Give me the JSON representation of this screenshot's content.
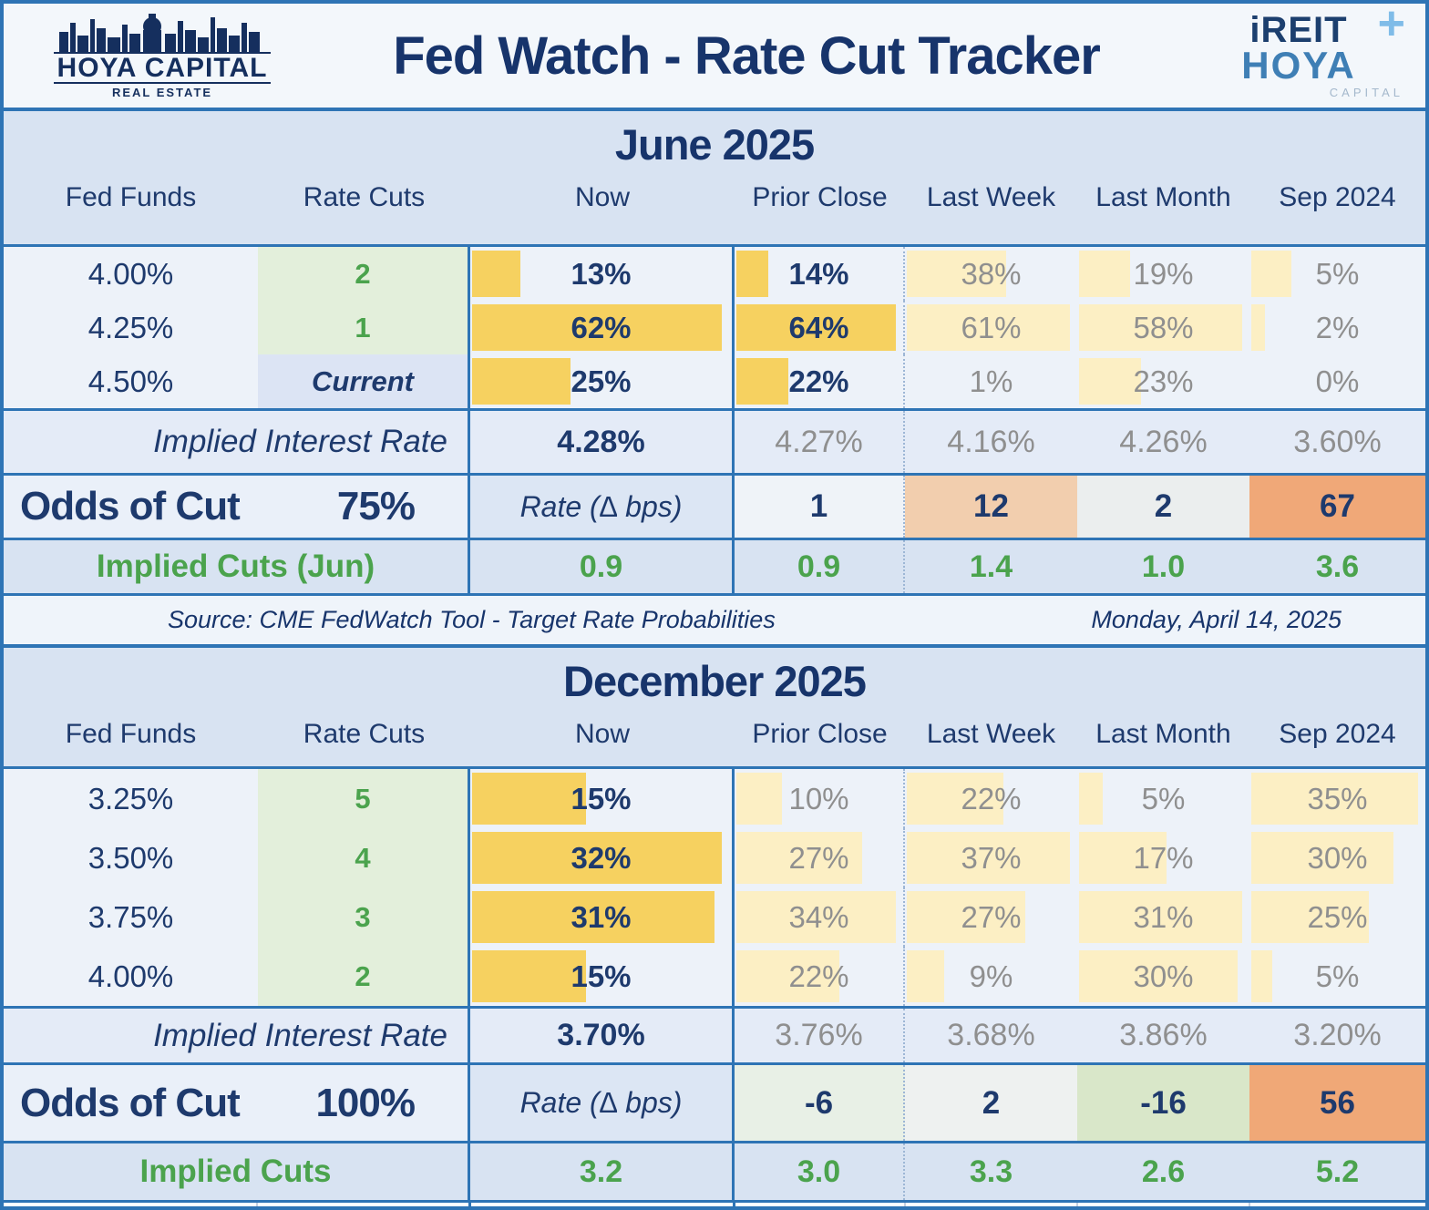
{
  "header": {
    "title": "Fed Watch - Rate Cut Tracker",
    "logo_left": {
      "name": "HOYA CAPITAL",
      "sub": "REAL ESTATE"
    },
    "logo_right": {
      "line1": "iREIT",
      "plus": "+",
      "line2": "HOYA",
      "line3": "CAPITAL"
    }
  },
  "columns": [
    "Fed Funds",
    "Rate Cuts",
    "Now",
    "Prior Close",
    "Last Week",
    "Last Month",
    "Sep 2024"
  ],
  "colors": {
    "border_blue": "#2E74B5",
    "navy_text": "#1E3A6D",
    "gray_text": "#8F8F8F",
    "green_text": "#4BA34D",
    "bar_strong": "#F6D160",
    "bar_pale": "#FCEFC4",
    "green_cell_bg": "#E3EFDB",
    "current_cell_bg": "#DCE4F4",
    "band_bg": "#D8E3F2",
    "row_bg": "#EDF2F9"
  },
  "june": {
    "title": "June 2025",
    "rows": [
      {
        "fed": "4.00%",
        "cut": "2",
        "now": {
          "v": "13%",
          "b": 0.2
        },
        "prior": {
          "v": "14%",
          "b": 0.21
        },
        "week": {
          "v": "38%",
          "b": 0.6
        },
        "month": {
          "v": "19%",
          "b": 0.32
        },
        "sep": {
          "v": "5%",
          "b": 0.25
        }
      },
      {
        "fed": "4.25%",
        "cut": "1",
        "now": {
          "v": "62%",
          "b": 0.97
        },
        "prior": {
          "v": "64%",
          "b": 0.97
        },
        "week": {
          "v": "61%",
          "b": 0.97
        },
        "month": {
          "v": "58%",
          "b": 0.97
        },
        "sep": {
          "v": "2%",
          "b": 0.1
        }
      },
      {
        "fed": "4.50%",
        "cut": "Current",
        "now": {
          "v": "25%",
          "b": 0.39
        },
        "prior": {
          "v": "22%",
          "b": 0.33
        },
        "week": {
          "v": "1%",
          "b": 0.02
        },
        "month": {
          "v": "23%",
          "b": 0.38
        },
        "sep": {
          "v": "0%",
          "b": 0
        }
      }
    ],
    "implied_rate": {
      "label": "Implied Interest Rate",
      "now": "4.28%",
      "values": [
        "4.27%",
        "4.16%",
        "4.26%",
        "3.60%"
      ]
    },
    "odds": {
      "label": "Odds of Cut",
      "pct": "75%",
      "rate_label": "Rate (∆ bps)",
      "values": [
        "1",
        "12",
        "2",
        "67"
      ],
      "cell_colors": [
        "#EFF3F8",
        "#F2CEAE",
        "#EBEEEE",
        "#F0A878"
      ]
    },
    "implied_cuts": {
      "label": "Implied Cuts (Jun)",
      "values": [
        "0.9",
        "0.9",
        "1.4",
        "1.0",
        "3.6"
      ]
    }
  },
  "source": {
    "text": "Source: CME FedWatch Tool - Target Rate Probabilities",
    "date": "Monday, April 14, 2025"
  },
  "december": {
    "title": "December 2025",
    "rows": [
      {
        "fed": "3.25%",
        "cut": "5",
        "now": {
          "v": "15%",
          "b": 0.45
        },
        "prior": {
          "v": "10%",
          "b": 0.29
        },
        "week": {
          "v": "22%",
          "b": 0.58
        },
        "month": {
          "v": "5%",
          "b": 0.16
        },
        "sep": {
          "v": "35%",
          "b": 0.97
        }
      },
      {
        "fed": "3.50%",
        "cut": "4",
        "now": {
          "v": "32%",
          "b": 0.97
        },
        "prior": {
          "v": "27%",
          "b": 0.77
        },
        "week": {
          "v": "37%",
          "b": 0.97
        },
        "month": {
          "v": "17%",
          "b": 0.53
        },
        "sep": {
          "v": "30%",
          "b": 0.83
        }
      },
      {
        "fed": "3.75%",
        "cut": "3",
        "now": {
          "v": "31%",
          "b": 0.94
        },
        "prior": {
          "v": "34%",
          "b": 0.97
        },
        "week": {
          "v": "27%",
          "b": 0.71
        },
        "month": {
          "v": "31%",
          "b": 0.97
        },
        "sep": {
          "v": "25%",
          "b": 0.69
        }
      },
      {
        "fed": "4.00%",
        "cut": "2",
        "now": {
          "v": "15%",
          "b": 0.45
        },
        "prior": {
          "v": "22%",
          "b": 0.63
        },
        "week": {
          "v": "9%",
          "b": 0.24
        },
        "month": {
          "v": "30%",
          "b": 0.94
        },
        "sep": {
          "v": "5%",
          "b": 0.14
        }
      }
    ],
    "implied_rate": {
      "label": "Implied Interest Rate",
      "now": "3.70%",
      "values": [
        "3.76%",
        "3.68%",
        "3.86%",
        "3.20%"
      ]
    },
    "odds": {
      "label": "Odds of Cut",
      "pct": "100%",
      "rate_label": "Rate (∆ bps)",
      "values": [
        "-6",
        "2",
        "-16",
        "56"
      ],
      "cell_colors": [
        "#E8F0E6",
        "#EEF1F0",
        "#D9E7C9",
        "#F0A877"
      ]
    },
    "implied_cuts": {
      "label": "Implied Cuts",
      "values": [
        "3.2",
        "3.0",
        "3.3",
        "2.6",
        "5.2"
      ]
    }
  },
  "chart_data": [
    {
      "type": "table",
      "title": "June 2025",
      "columns": [
        "Fed Funds",
        "Rate Cuts",
        "Now",
        "Prior Close",
        "Last Week",
        "Last Month",
        "Sep 2024"
      ],
      "rows": [
        [
          "4.00%",
          "2",
          "13%",
          "14%",
          "38%",
          "19%",
          "5%"
        ],
        [
          "4.25%",
          "1",
          "62%",
          "64%",
          "61%",
          "58%",
          "2%"
        ],
        [
          "4.50%",
          "Current",
          "25%",
          "22%",
          "1%",
          "23%",
          "0%"
        ]
      ],
      "implied_interest_rate": [
        "4.28%",
        "4.27%",
        "4.16%",
        "4.26%",
        "3.60%"
      ],
      "odds_of_cut": "75%",
      "rate_delta_bps": [
        1,
        12,
        2,
        67
      ],
      "implied_cuts": [
        0.9,
        0.9,
        1.4,
        1.0,
        3.6
      ]
    },
    {
      "type": "table",
      "title": "December 2025",
      "columns": [
        "Fed Funds",
        "Rate Cuts",
        "Now",
        "Prior Close",
        "Last Week",
        "Last Month",
        "Sep 2024"
      ],
      "rows": [
        [
          "3.25%",
          "5",
          "15%",
          "10%",
          "22%",
          "5%",
          "35%"
        ],
        [
          "3.50%",
          "4",
          "32%",
          "27%",
          "37%",
          "17%",
          "30%"
        ],
        [
          "3.75%",
          "3",
          "31%",
          "34%",
          "27%",
          "31%",
          "25%"
        ],
        [
          "4.00%",
          "2",
          "15%",
          "22%",
          "9%",
          "30%",
          "5%"
        ]
      ],
      "implied_interest_rate": [
        "3.70%",
        "3.76%",
        "3.68%",
        "3.86%",
        "3.20%"
      ],
      "odds_of_cut": "100%",
      "rate_delta_bps": [
        -6,
        2,
        -16,
        56
      ],
      "implied_cuts": [
        3.2,
        3.0,
        3.3,
        2.6,
        5.2
      ]
    }
  ]
}
